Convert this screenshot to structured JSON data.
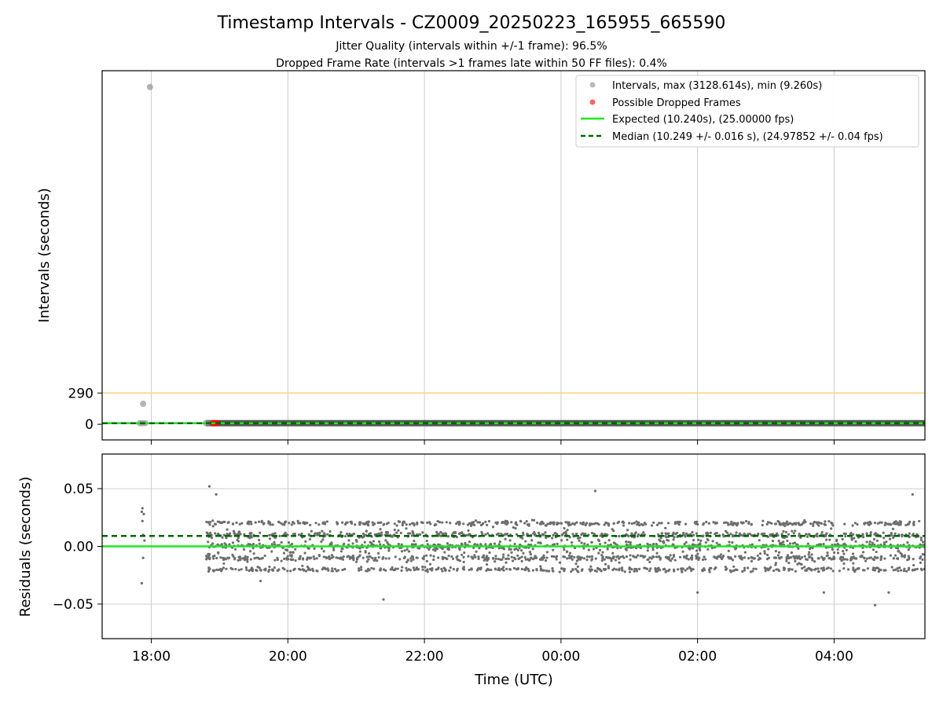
{
  "chart_data": {
    "title": "Timestamp Intervals - CZ0009_20250223_165955_665590",
    "subtitle_lines": [
      "Jitter Quality (intervals within +/-1 frame): 96.5%",
      "Dropped Frame Rate (intervals >1 frames late within 50 FF files): 0.4%"
    ],
    "xlabel": "Time (UTC)",
    "x_tick_labels": [
      "18:00",
      "20:00",
      "22:00",
      "00:00",
      "02:00",
      "04:00"
    ],
    "x_ticks_hours": [
      18,
      20,
      22,
      24,
      26,
      28
    ],
    "xlim_hours": [
      17.28,
      29.33
    ],
    "colors": {
      "intervals": "#8c8c8c",
      "residuals": "#6e6e6e",
      "dropped": "#ff0000",
      "expected": "#1ee61e",
      "median": "#006400",
      "threshold": "#ffd27f",
      "grid": "#cccccc"
    },
    "panels": [
      {
        "type": "scatter",
        "ylabel": "Intervals (seconds)",
        "y_tick_labels": [
          "0",
          "290"
        ],
        "y_ticks": [
          0,
          290
        ],
        "ylim": [
          -145,
          3280
        ],
        "threshold_line": 290,
        "expected_line": 10.24,
        "median_line": 10.249,
        "legend_position": "top-right",
        "legend": {
          "intervals": "Intervals, max (3128.614s), min (9.260s)",
          "dropped": "Possible Dropped Frames",
          "expected": "Expected (10.240s), (25.00000 fps)",
          "median": "Median (10.249 +/- 0.016 s), (24.97852 +/- 0.04 fps)"
        },
        "series": [
          {
            "name": "Intervals, max (3128.614s), min (9.260s)",
            "type": "scatter",
            "x": [
              17.98,
              17.88,
              17.83,
              17.87,
              17.91,
              18.8,
              18.85,
              18.93
            ],
            "y": [
              3128.614,
              190,
              10.3,
              10.2,
              10.25,
              10.24,
              10.25,
              10.24
            ]
          },
          {
            "name": "Possible Dropped Frames",
            "type": "scatter",
            "x": [
              18.9,
              18.92,
              18.95,
              18.97
            ],
            "y": [
              10.3,
              10.35,
              10.3,
              10.28
            ]
          }
        ],
        "dense_band": {
          "x_range": [
            18.8,
            29.33
          ],
          "y": 10.25
        }
      },
      {
        "type": "scatter",
        "ylabel": "Residuals (seconds)",
        "y_tick_labels": [
          "0.05",
          "0.00",
          "−0.05"
        ],
        "y_ticks": [
          0.05,
          0.0,
          -0.05
        ],
        "ylim": [
          -0.08,
          0.08
        ],
        "expected_line": 0.0,
        "median_line": 0.009,
        "series": [
          {
            "name": "Residuals",
            "type": "scatter",
            "x": [
              17.86,
              17.87,
              17.88,
              17.9,
              17.86,
              17.88,
              17.87,
              17.89,
              18.85,
              18.95,
              19.6,
              21.4,
              24.5,
              26.0,
              27.85,
              28.6,
              28.8,
              29.15
            ],
            "y": [
              0.03,
              0.033,
              0.01,
              0.005,
              -0.032,
              -0.01,
              0.022,
              0.028,
              0.052,
              0.045,
              -0.03,
              -0.046,
              0.048,
              -0.04,
              -0.04,
              -0.051,
              -0.04,
              0.045
            ]
          },
          {
            "name": "Residual cloud",
            "type": "scatter-generated",
            "count": 2600,
            "x_range": [
              18.8,
              29.33
            ],
            "levels": [
              -0.02,
              -0.01,
              0.0,
              0.01,
              0.02
            ],
            "spread": 0.025
          }
        ]
      }
    ]
  }
}
